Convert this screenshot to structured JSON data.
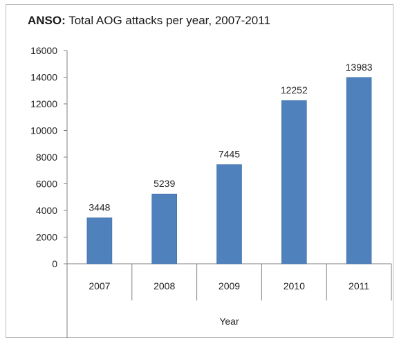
{
  "title": {
    "prefix": "ANSO:",
    "text": "Total AOG attacks per year, 2007-2011"
  },
  "colors": {
    "bar": "#4f81bd",
    "bar_edge": "#3a6aa3",
    "axis": "#7f7f7f"
  },
  "chart_data": {
    "type": "bar",
    "title": "ANSO: Total AOG attacks per year, 2007-2011",
    "xlabel": "Year",
    "ylabel": "",
    "categories": [
      "2007",
      "2008",
      "2009",
      "2010",
      "2011"
    ],
    "values": [
      3448,
      5239,
      7445,
      12252,
      13983
    ],
    "data_labels": [
      "3448",
      "5239",
      "7445",
      "12252",
      "13983"
    ],
    "ylim": [
      0,
      16000
    ],
    "yticks": [
      0,
      2000,
      4000,
      6000,
      8000,
      10000,
      12000,
      14000,
      16000
    ],
    "grid": false,
    "legend": "none"
  }
}
